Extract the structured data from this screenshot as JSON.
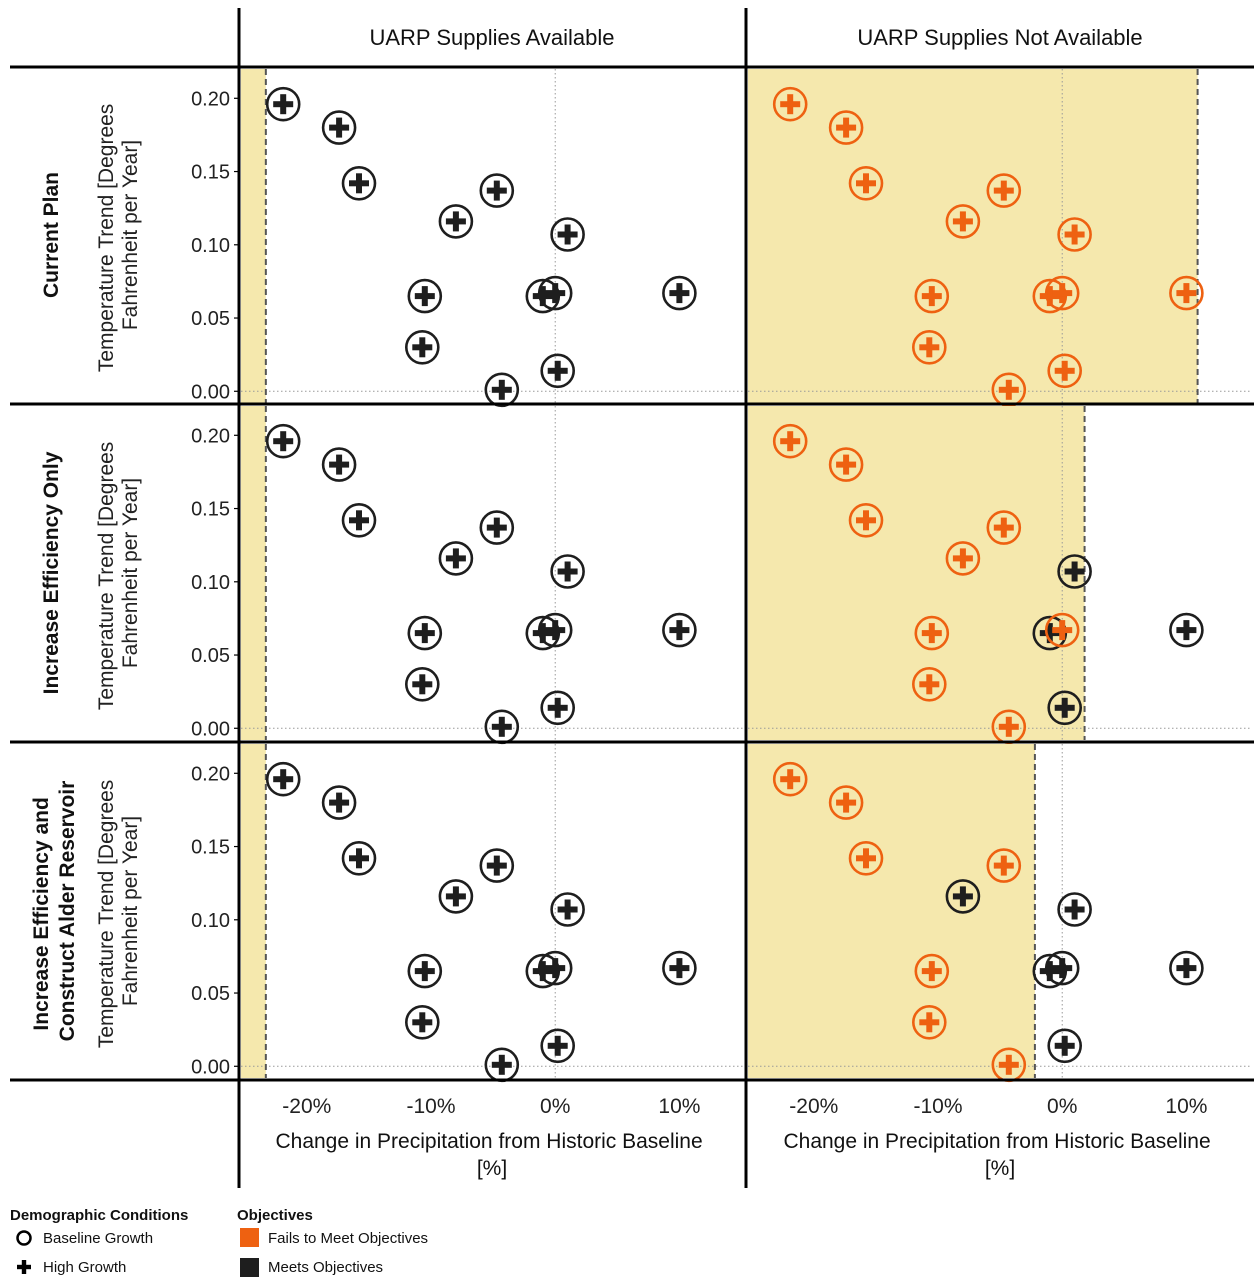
{
  "chart_data": {
    "type": "scatter",
    "columns": [
      "UARP Supplies Available",
      "UARP Supplies Not Available"
    ],
    "rows": [
      "Current Plan",
      "Increase Efficiency Only",
      "Increase Efficiency and Construct Alder Reservoir"
    ],
    "ylabel_line1": "Temperature Trend [Degrees",
    "ylabel_line2": "Fahrenheit per Year]",
    "xlabel_line1": "Change in Precipitation from Historic Baseline",
    "xlabel_line2": "[%]",
    "x_ticks": [
      -20,
      -10,
      0,
      10
    ],
    "x_tick_labels": [
      "-20%",
      "-10%",
      "0%",
      "10%"
    ],
    "y_ticks": [
      0.0,
      0.05,
      0.1,
      0.15,
      0.2
    ],
    "y_tick_labels": [
      "0.00",
      "0.05",
      "0.10",
      "0.15",
      "0.20"
    ],
    "xlim": [
      -25.3,
      15.2
    ],
    "ylim": [
      -0.008,
      0.22
    ],
    "grid": "dotted reference lines at x=0 and y=0",
    "points": [
      {
        "x": -21.9,
        "y": 0.196
      },
      {
        "x": -17.4,
        "y": 0.18
      },
      {
        "x": -15.8,
        "y": 0.142
      },
      {
        "x": -4.7,
        "y": 0.137
      },
      {
        "x": -8.0,
        "y": 0.116
      },
      {
        "x": 1.0,
        "y": 0.107
      },
      {
        "x": -10.5,
        "y": 0.065
      },
      {
        "x": -1.0,
        "y": 0.065
      },
      {
        "x": 0.0,
        "y": 0.067
      },
      {
        "x": 10.0,
        "y": 0.067
      },
      {
        "x": -10.7,
        "y": 0.03
      },
      {
        "x": 0.2,
        "y": 0.014
      },
      {
        "x": -4.3,
        "y": 0.001
      }
    ],
    "panels": [
      {
        "row": 0,
        "col": 0,
        "shaded_range": [
          -25.3,
          -23.3
        ],
        "fails": [
          false,
          false,
          false,
          false,
          false,
          false,
          false,
          false,
          false,
          false,
          false,
          false,
          false
        ]
      },
      {
        "row": 0,
        "col": 1,
        "shaded_range": [
          -25.3,
          10.9
        ],
        "fails": [
          true,
          true,
          true,
          true,
          true,
          true,
          true,
          true,
          true,
          true,
          true,
          true,
          true
        ]
      },
      {
        "row": 1,
        "col": 0,
        "shaded_range": [
          -25.3,
          -23.3
        ],
        "fails": [
          false,
          false,
          false,
          false,
          false,
          false,
          false,
          false,
          false,
          false,
          false,
          false,
          false
        ]
      },
      {
        "row": 1,
        "col": 1,
        "shaded_range": [
          -25.3,
          1.8
        ],
        "fails": [
          true,
          true,
          true,
          true,
          true,
          false,
          true,
          false,
          true,
          false,
          true,
          false,
          true
        ]
      },
      {
        "row": 2,
        "col": 0,
        "shaded_range": [
          -25.3,
          -23.3
        ],
        "fails": [
          false,
          false,
          false,
          false,
          false,
          false,
          false,
          false,
          false,
          false,
          false,
          false,
          false
        ]
      },
      {
        "row": 2,
        "col": 1,
        "shaded_range": [
          -25.3,
          -2.2
        ],
        "fails": [
          true,
          true,
          true,
          true,
          false,
          false,
          true,
          false,
          false,
          false,
          true,
          false,
          true
        ]
      }
    ],
    "legend": {
      "demographic_title": "Demographic Conditions",
      "demographic_items": [
        {
          "label": "Baseline Growth",
          "marker": "open-circle"
        },
        {
          "label": "High Growth",
          "marker": "plus"
        }
      ],
      "objectives_title": "Objectives",
      "objectives_items": [
        {
          "label": "Fails to Meet Objectives",
          "color": "#ee6111"
        },
        {
          "label": "Meets Objectives",
          "color": "#1e1e1e"
        }
      ],
      "placement": "bottom-left"
    },
    "colors": {
      "fails": "#ee6111",
      "meets": "#1e1e1e",
      "shade": "#f5e8ad",
      "shade_edge": "#555555"
    }
  }
}
